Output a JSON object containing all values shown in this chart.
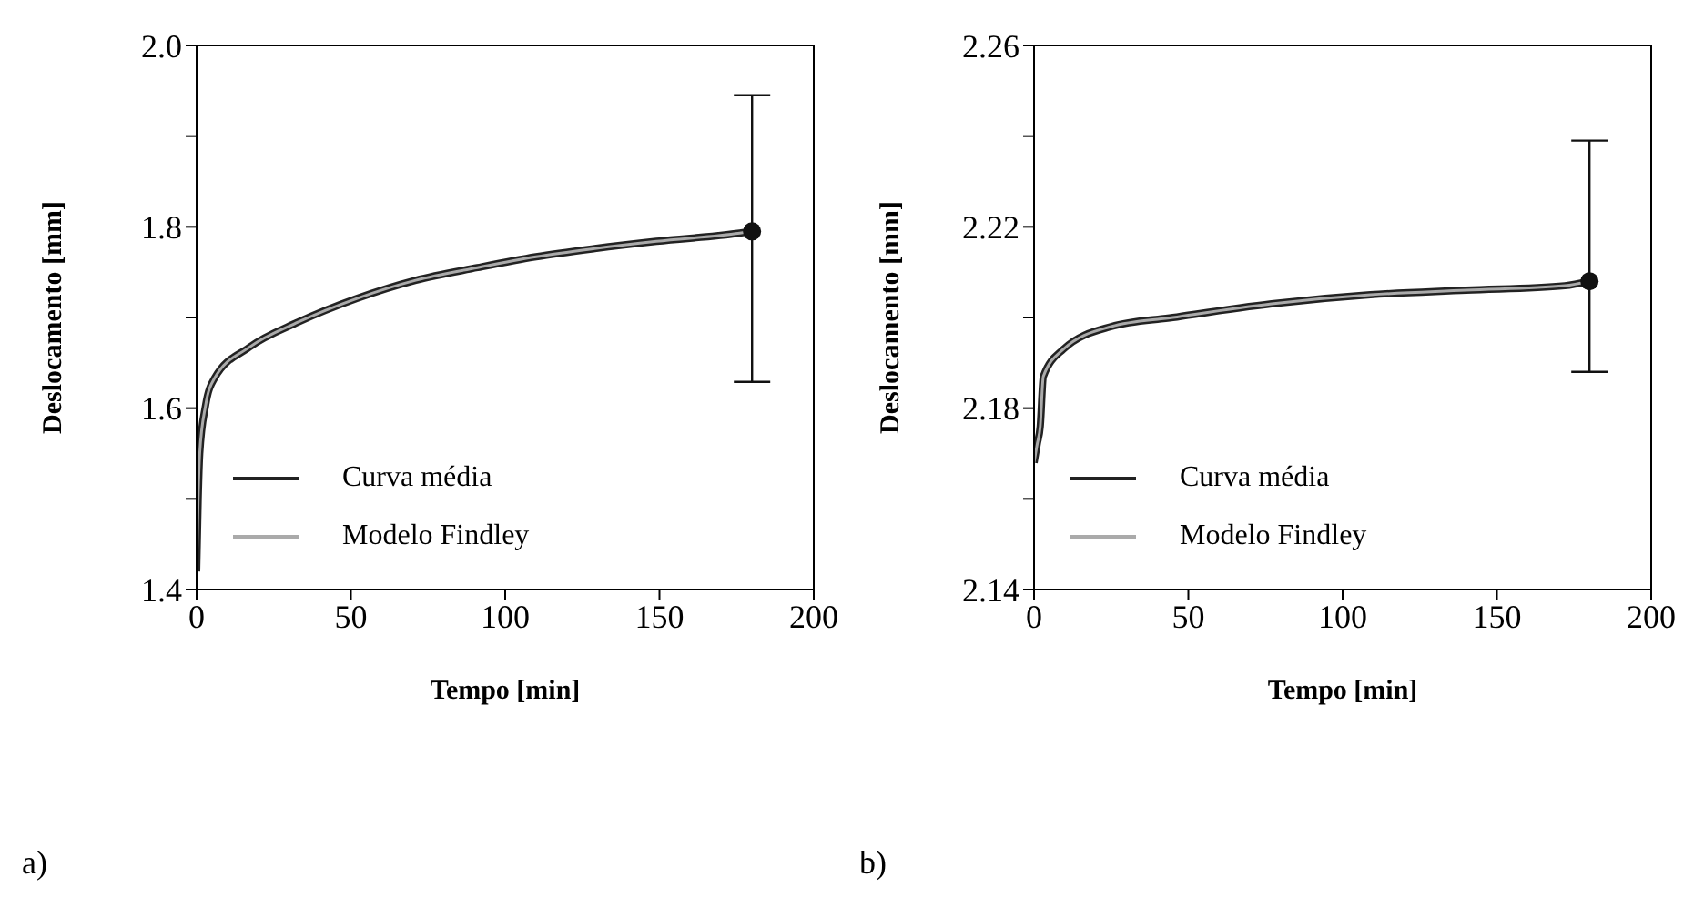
{
  "chart_data": [
    {
      "type": "line",
      "xlabel": "Tempo [min]",
      "ylabel": "Deslocamento [mm]",
      "annotations": [
        "a)"
      ],
      "x": [
        0,
        0.5,
        1,
        2.9,
        5.8,
        17,
        33,
        52,
        71,
        91,
        110,
        129,
        149,
        176,
        180
      ],
      "series": [
        {
          "name": "Curva média",
          "color": "#222222",
          "values": [
            1.42,
            1.5,
            1.55,
            1.603,
            1.633,
            1.667,
            1.695,
            1.721,
            1.741,
            1.755,
            1.767,
            1.776,
            1.784,
            1.793,
            1.795
          ]
        },
        {
          "name": "Modelo Findley",
          "color": "#aaaaaa",
          "values": [
            1.42,
            1.5,
            1.55,
            1.603,
            1.633,
            1.667,
            1.695,
            1.721,
            1.741,
            1.755,
            1.767,
            1.776,
            1.784,
            1.793,
            1.795
          ]
        },
        {
          "type": "scatter",
          "color": "#111111",
          "x": [
            180
          ],
          "values": [
            1.795
          ],
          "errors": [
            [
              1.629,
              1.945
            ]
          ],
          "marker": "circle"
        }
      ],
      "xlim": [
        0,
        200
      ],
      "xticks": [
        0,
        50,
        100,
        150,
        200
      ],
      "ylim": [
        1.4,
        2.0
      ],
      "yticks": [
        1.4,
        {
          "value": 1.5,
          "label": null
        },
        1.6,
        {
          "value": 1.7,
          "label": null
        },
        1.8,
        {
          "value": 1.9,
          "label": null
        },
        {
          "value": 2.0,
          "label": "2.0"
        }
      ],
      "legend": "bottom left"
    },
    {
      "type": "line",
      "xlabel": "Tempo [min]",
      "ylabel": "Deslocamento [mm]",
      "annotations": [
        "b)"
      ],
      "x": [
        0,
        1,
        2,
        3,
        9.5,
        25,
        45,
        77,
        109,
        140,
        172,
        180
      ],
      "series": [
        {
          "name": "Curva média",
          "color": "#222222",
          "values": [
            2.168,
            2.172,
            2.176,
            2.187,
            2.193,
            2.198,
            2.2,
            2.203,
            2.205,
            2.206,
            2.207,
            2.208
          ]
        },
        {
          "name": "Modelo Findley",
          "color": "#aaaaaa",
          "values": [
            2.168,
            2.172,
            2.176,
            2.187,
            2.193,
            2.198,
            2.2,
            2.203,
            2.205,
            2.206,
            2.207,
            2.208
          ]
        },
        {
          "type": "scatter",
          "color": "#111111",
          "x": [
            180
          ],
          "values": [
            2.208
          ],
          "errors": [
            [
              2.188,
              2.239
            ]
          ],
          "marker": "circle"
        }
      ],
      "xlim": [
        0,
        200
      ],
      "xticks": [
        0,
        50,
        100,
        150,
        200
      ],
      "ylim": [
        2.14,
        2.26
      ],
      "yticks": [
        2.14,
        {
          "value": 2.16,
          "label": null
        },
        2.18,
        {
          "value": 2.2,
          "label": null
        },
        2.22,
        {
          "value": 2.24,
          "label": null
        },
        2.26
      ],
      "legend": "bottom left"
    }
  ]
}
